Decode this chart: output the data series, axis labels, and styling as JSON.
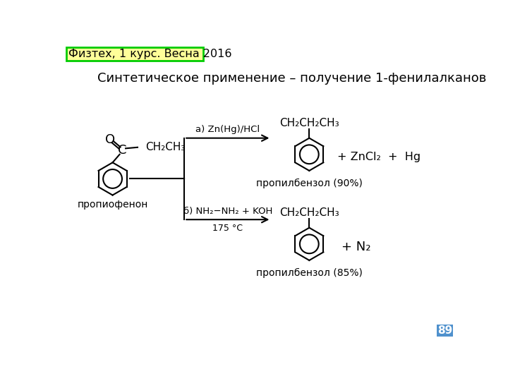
{
  "bg_color": "#ffffff",
  "header_text": "Физтех, 1 курс. Весна 2016",
  "header_bg": "#ffff99",
  "header_border": "#00cc00",
  "title_text": "Синтетическое применение – получение 1-фенилалканов",
  "page_number": "89",
  "page_bg": "#4f91cd",
  "reaction_a_label": "а) Zn(Hg)/HCl",
  "reaction_b_label1": "б) NH₂−NH₂ + KOH",
  "reaction_b_label2": "175 °C",
  "product_a_label": "пропилбензол (90%)",
  "product_b_label": "пропилбензол (85%)",
  "reactant_label": "пропиофенон",
  "zncl2_hg": "+ ZnCl₂  +  Hg",
  "n2": "+ N₂",
  "ch2ch2ch3": "CH₂CH₂CH₃",
  "ch2ch3": "CH₂CH₃"
}
